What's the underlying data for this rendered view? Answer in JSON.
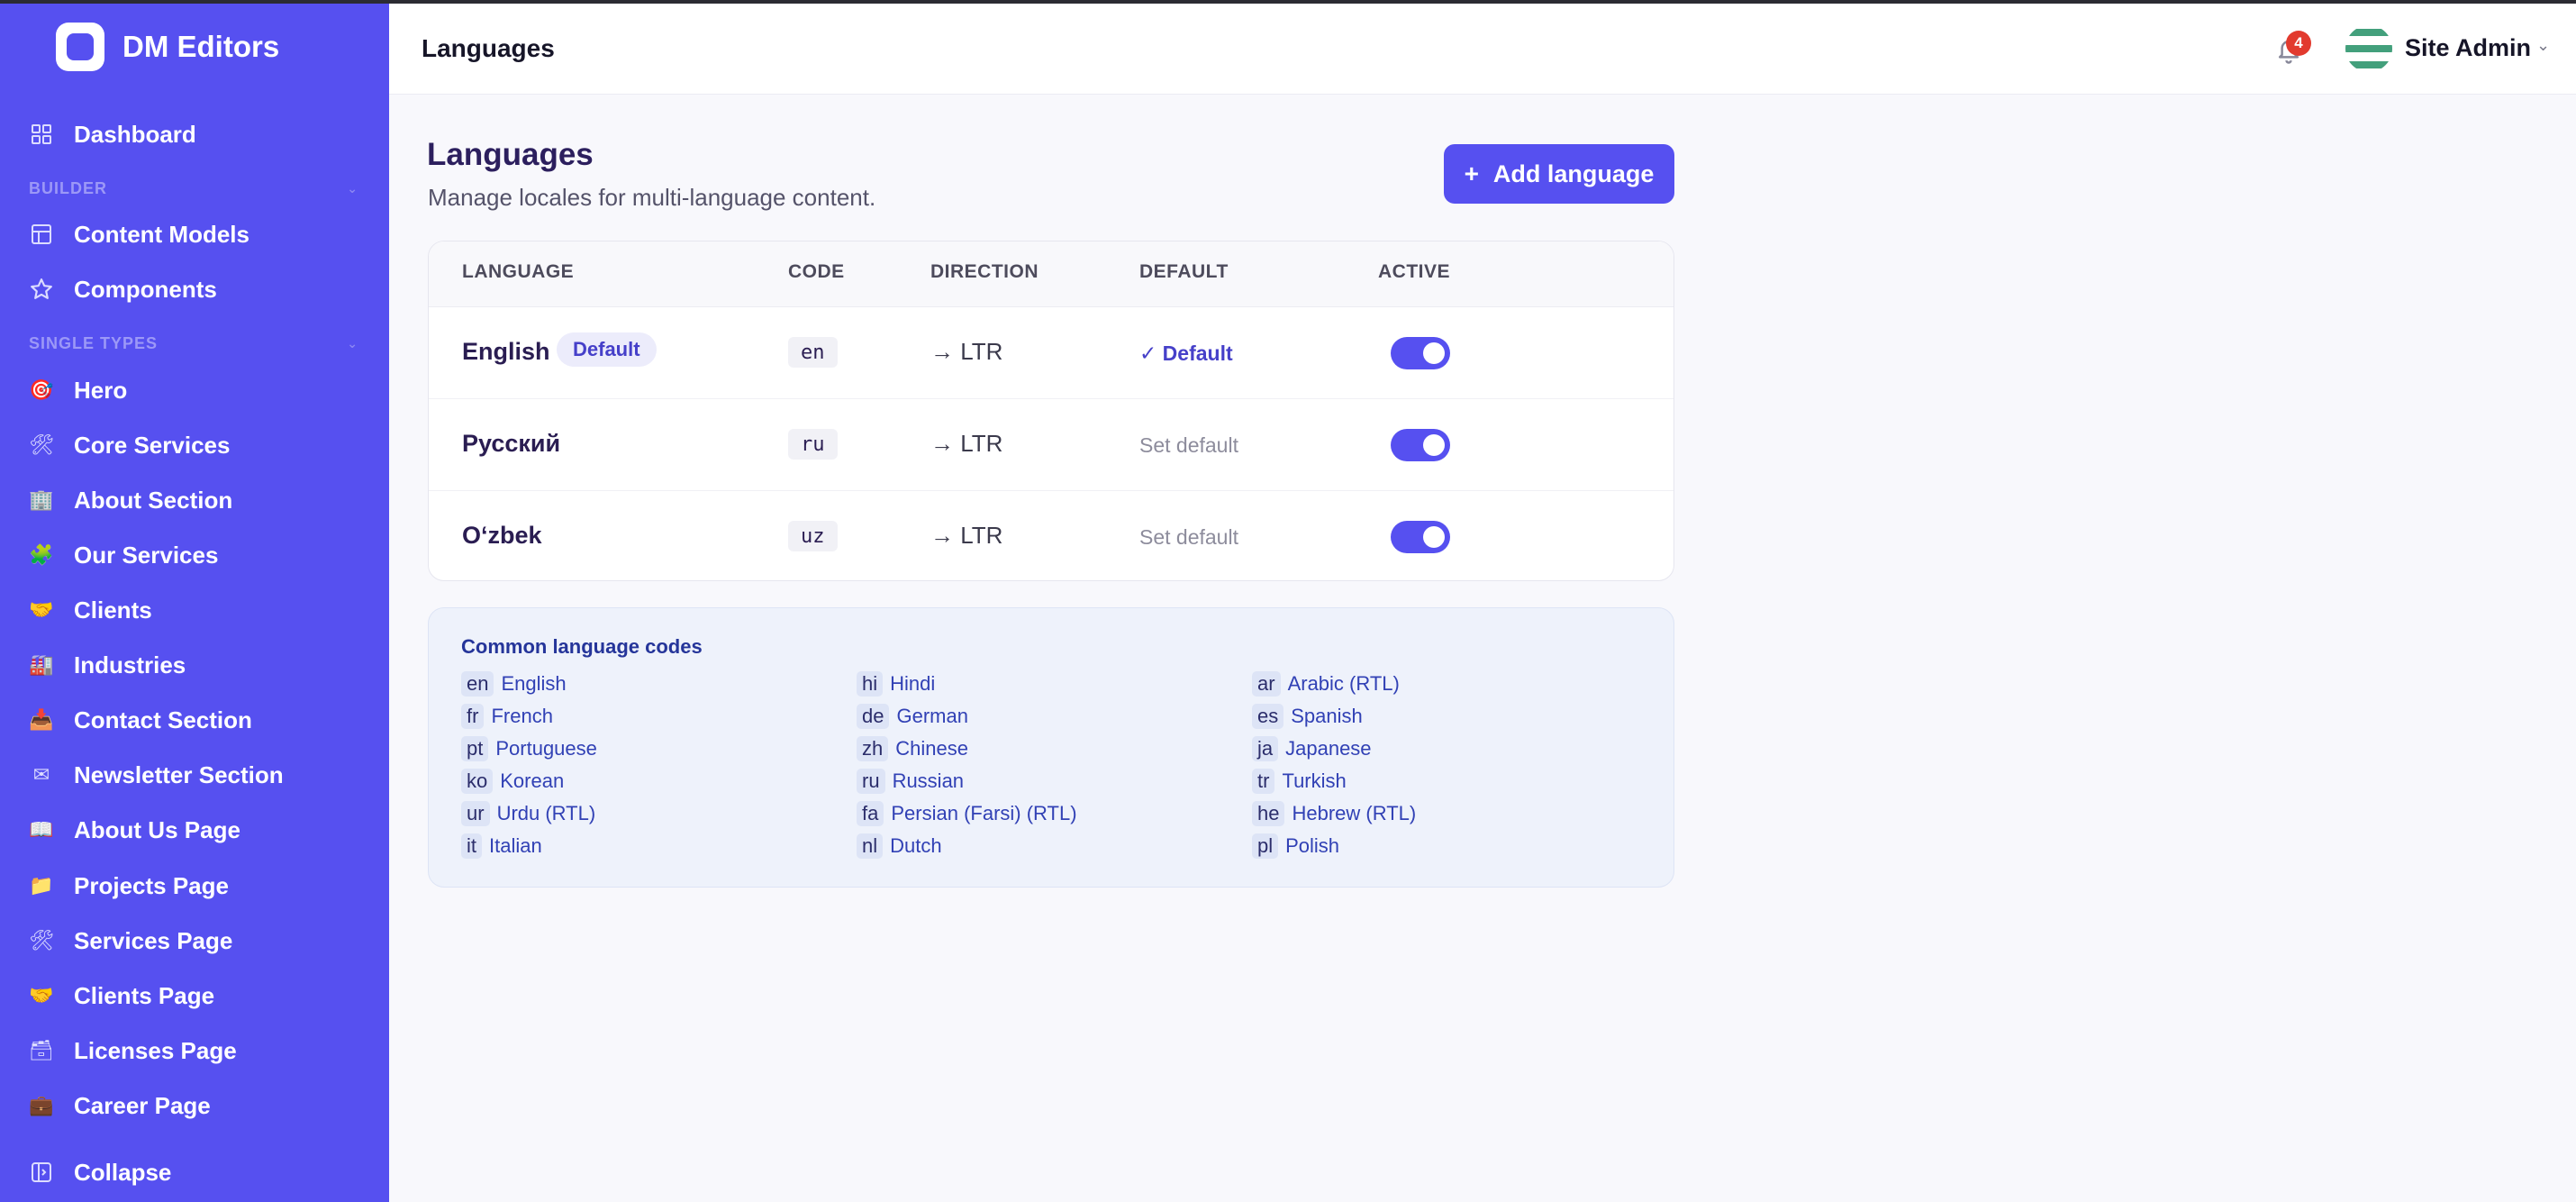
{
  "brand": {
    "name": "DM Editors"
  },
  "sidebar": {
    "dashboard": {
      "label": "Dashboard",
      "icon": "dashboard-grid-icon"
    },
    "builder_section": "BUILDER",
    "builder_items": [
      {
        "label": "Content Models",
        "icon": "layout-icon"
      },
      {
        "label": "Components",
        "icon": "star-icon"
      }
    ],
    "single_types_section": "SINGLE TYPES",
    "single_types": [
      {
        "label": "Hero",
        "icon": "🎯"
      },
      {
        "label": "Core Services",
        "icon": "🛠"
      },
      {
        "label": "About Section",
        "icon": "🏢"
      },
      {
        "label": "Our Services",
        "icon": "🧩"
      },
      {
        "label": "Clients",
        "icon": "🤝"
      },
      {
        "label": "Industries",
        "icon": "🏭"
      },
      {
        "label": "Contact Section",
        "icon": "📥"
      },
      {
        "label": "Newsletter Section",
        "icon": "✉"
      },
      {
        "label": "About Us Page",
        "icon": "📖"
      },
      {
        "label": "Projects Page",
        "icon": "📁"
      },
      {
        "label": "Services Page",
        "icon": "🛠"
      },
      {
        "label": "Clients Page",
        "icon": "🤝"
      },
      {
        "label": "Licenses Page",
        "icon": "🗃"
      },
      {
        "label": "Career Page",
        "icon": "💼"
      }
    ],
    "collapse": {
      "label": "Collapse",
      "icon": "collapse-panel-icon"
    }
  },
  "header": {
    "title": "Languages",
    "notification_count": "4",
    "user_name": "Site Admin"
  },
  "main": {
    "heading": "Languages",
    "subtitle": "Manage locales for multi-language content.",
    "add_button": "Add language",
    "table": {
      "headers": [
        "LANGUAGE",
        "CODE",
        "DIRECTION",
        "DEFAULT",
        "ACTIVE"
      ],
      "rows": [
        {
          "name": "English",
          "badge": "Default",
          "code": "en",
          "direction": "→ LTR",
          "default_text": "✓ Default",
          "is_default": true,
          "active": true
        },
        {
          "name": "Русский",
          "code": "ru",
          "direction": "→ LTR",
          "default_text": "Set default",
          "is_default": false,
          "active": true
        },
        {
          "name": "O‘zbek",
          "code": "uz",
          "direction": "→ LTR",
          "default_text": "Set default",
          "is_default": false,
          "active": true
        }
      ]
    },
    "common_codes": {
      "title": "Common language codes",
      "columns": [
        [
          {
            "code": "en",
            "name": "English"
          },
          {
            "code": "fr",
            "name": "French"
          },
          {
            "code": "pt",
            "name": "Portuguese"
          },
          {
            "code": "ko",
            "name": "Korean"
          },
          {
            "code": "ur",
            "name": "Urdu (RTL)"
          },
          {
            "code": "it",
            "name": "Italian"
          }
        ],
        [
          {
            "code": "hi",
            "name": "Hindi"
          },
          {
            "code": "de",
            "name": "German"
          },
          {
            "code": "zh",
            "name": "Chinese"
          },
          {
            "code": "ru",
            "name": "Russian"
          },
          {
            "code": "fa",
            "name": "Persian (Farsi) (RTL)"
          },
          {
            "code": "nl",
            "name": "Dutch"
          }
        ],
        [
          {
            "code": "ar",
            "name": "Arabic (RTL)"
          },
          {
            "code": "es",
            "name": "Spanish"
          },
          {
            "code": "ja",
            "name": "Japanese"
          },
          {
            "code": "tr",
            "name": "Turkish"
          },
          {
            "code": "he",
            "name": "Hebrew (RTL)"
          },
          {
            "code": "pl",
            "name": "Polish"
          }
        ]
      ]
    }
  },
  "colors": {
    "accent": "#5650f0",
    "badge": "#e23a2e"
  }
}
